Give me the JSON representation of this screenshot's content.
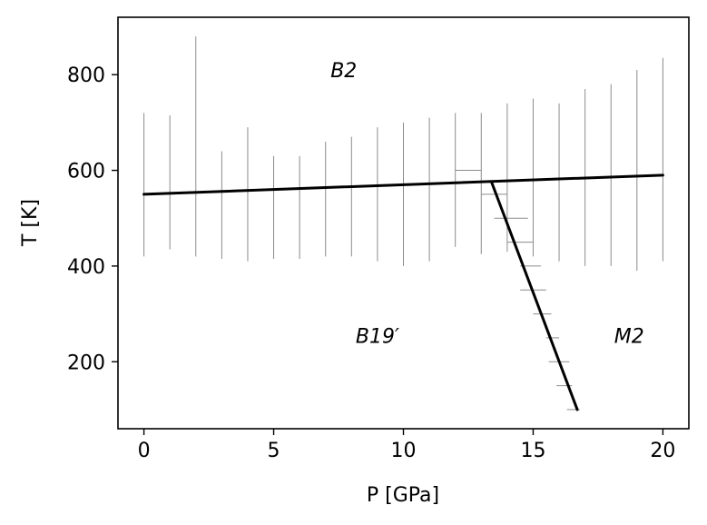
{
  "chart_data": {
    "type": "line",
    "title": "",
    "xlabel": "P [GPa]",
    "ylabel": "T [K]",
    "xlim": [
      -1,
      21
    ],
    "ylim": [
      60,
      920
    ],
    "xticks": [
      0,
      5,
      10,
      15,
      20
    ],
    "yticks": [
      200,
      400,
      600,
      800
    ],
    "xtick_labels": [
      "0",
      "5",
      "10",
      "15",
      "20"
    ],
    "ytick_labels": [
      "200",
      "400",
      "600",
      "800"
    ],
    "grid": false,
    "phase_labels": [
      {
        "text": "B2",
        "x": 7.7,
        "y": 810
      },
      {
        "text": "B19′",
        "x": 9.0,
        "y": 255
      },
      {
        "text": "M2",
        "x": 18.7,
        "y": 255
      }
    ],
    "boundaries": [
      {
        "x": [
          0,
          20
        ],
        "y": [
          550,
          590
        ]
      },
      {
        "x": [
          13.4,
          16.7
        ],
        "y": [
          575,
          100
        ]
      }
    ],
    "vertical_error_bars": [
      {
        "x": 0,
        "y_low": 420,
        "y_high": 720
      },
      {
        "x": 1,
        "y_low": 435,
        "y_high": 715
      },
      {
        "x": 2,
        "y_low": 420,
        "y_high": 880
      },
      {
        "x": 3,
        "y_low": 415,
        "y_high": 640
      },
      {
        "x": 4,
        "y_low": 410,
        "y_high": 690
      },
      {
        "x": 5,
        "y_low": 415,
        "y_high": 630
      },
      {
        "x": 6,
        "y_low": 415,
        "y_high": 630
      },
      {
        "x": 7,
        "y_low": 420,
        "y_high": 660
      },
      {
        "x": 8,
        "y_low": 420,
        "y_high": 670
      },
      {
        "x": 9,
        "y_low": 410,
        "y_high": 690
      },
      {
        "x": 10,
        "y_low": 400,
        "y_high": 700
      },
      {
        "x": 11,
        "y_low": 410,
        "y_high": 710
      },
      {
        "x": 12,
        "y_low": 440,
        "y_high": 720
      },
      {
        "x": 13,
        "y_low": 425,
        "y_high": 720
      },
      {
        "x": 14,
        "y_low": 430,
        "y_high": 740
      },
      {
        "x": 15,
        "y_low": 420,
        "y_high": 750
      },
      {
        "x": 16,
        "y_low": 410,
        "y_high": 740
      },
      {
        "x": 17,
        "y_low": 400,
        "y_high": 770
      },
      {
        "x": 18,
        "y_low": 400,
        "y_high": 780
      },
      {
        "x": 19,
        "y_low": 390,
        "y_high": 810
      },
      {
        "x": 20,
        "y_low": 410,
        "y_high": 835
      }
    ],
    "horizontal_error_bars": [
      {
        "y": 600,
        "x_low": 12,
        "x_high": 13
      },
      {
        "y": 550,
        "x_low": 13,
        "x_high": 14
      },
      {
        "y": 500,
        "x_low": 13.5,
        "x_high": 14.8
      },
      {
        "y": 450,
        "x_low": 14,
        "x_high": 15
      },
      {
        "y": 400,
        "x_low": 14.5,
        "x_high": 15.3
      },
      {
        "y": 350,
        "x_low": 14.5,
        "x_high": 15.5
      },
      {
        "y": 300,
        "x_low": 15,
        "x_high": 15.7
      },
      {
        "y": 250,
        "x_low": 15.5,
        "x_high": 16
      },
      {
        "y": 200,
        "x_low": 15.6,
        "x_high": 16.4
      },
      {
        "y": 150,
        "x_low": 15.9,
        "x_high": 16.5
      },
      {
        "y": 100,
        "x_low": 16.3,
        "x_high": 16.8
      }
    ],
    "colors": {
      "boundary": "#000000",
      "error_bar": "#8c8c8c"
    }
  }
}
